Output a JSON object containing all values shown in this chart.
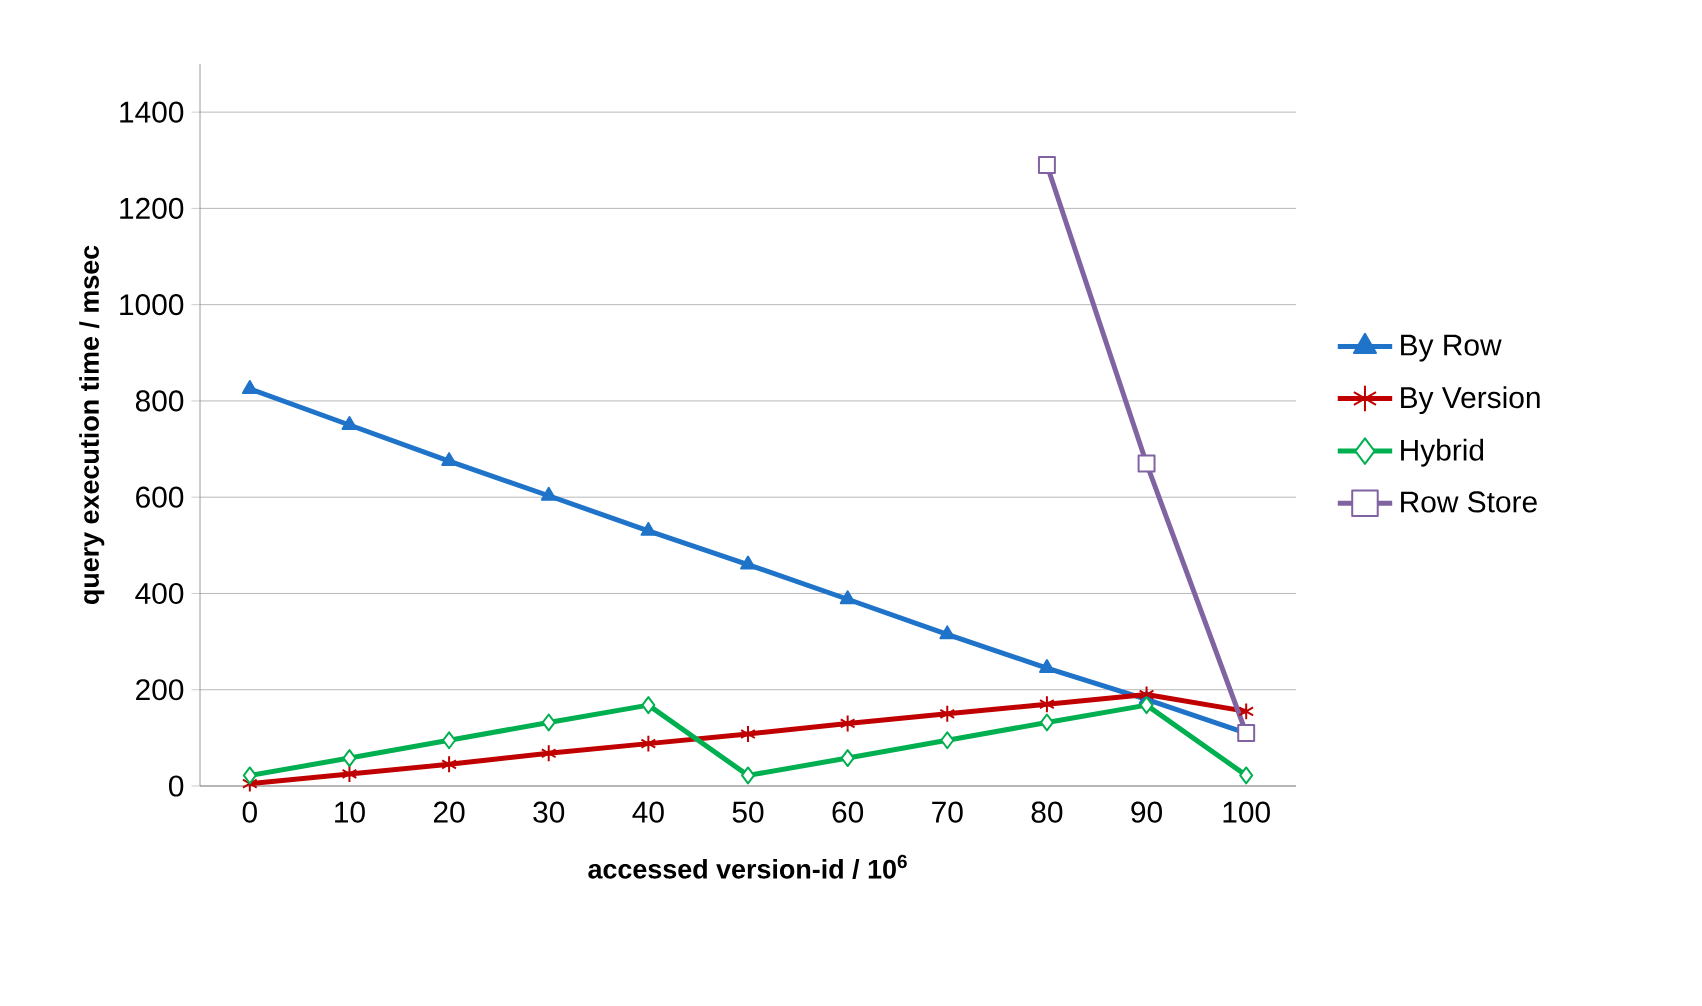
{
  "chart_data": {
    "type": "line",
    "xlabel": "accessed version-id / 10$^{6}$",
    "ylabel": "query execution time / msec",
    "categories": [
      "0",
      "10",
      "20",
      "30",
      "40",
      "50",
      "60",
      "70",
      "80",
      "90",
      "100"
    ],
    "series": [
      {
        "name": "By Row",
        "color": "#1f73c8",
        "marker": "triangle",
        "values": [
          825,
          750,
          675,
          603,
          530,
          460,
          388,
          315,
          245,
          180,
          110
        ]
      },
      {
        "name": "By Version",
        "color": "#c00000",
        "marker": "cross",
        "values": [
          5,
          25,
          45,
          68,
          88,
          108,
          130,
          150,
          170,
          190,
          155
        ]
      },
      {
        "name": "Hybrid",
        "color": "#00b050",
        "marker": "diamond",
        "values": [
          22,
          58,
          95,
          132,
          168,
          22,
          58,
          95,
          132,
          168,
          22
        ]
      },
      {
        "name": "Row Store",
        "color": "#8064a2",
        "marker": "square",
        "values": [
          null,
          null,
          null,
          null,
          null,
          null,
          null,
          null,
          1290,
          670,
          110
        ]
      }
    ],
    "ylim": [
      0,
      1500
    ],
    "yticks": [
      0,
      200,
      400,
      600,
      800,
      1000,
      1200,
      1400
    ],
    "grid": "y",
    "legend": "right",
    "line_style": "solid"
  }
}
